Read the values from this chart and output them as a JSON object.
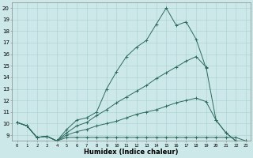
{
  "title": "",
  "xlabel": "Humidex (Indice chaleur)",
  "bg_color": "#cce8e8",
  "line_color": "#2d6b5e",
  "grid_color": "#aacfcf",
  "xlim": [
    -0.5,
    23.5
  ],
  "ylim": [
    8.5,
    20.5
  ],
  "xticks": [
    0,
    1,
    2,
    3,
    4,
    5,
    6,
    7,
    8,
    9,
    10,
    11,
    12,
    13,
    14,
    15,
    16,
    17,
    18,
    19,
    20,
    21,
    22,
    23
  ],
  "yticks": [
    9,
    10,
    11,
    12,
    13,
    14,
    15,
    16,
    17,
    18,
    19,
    20
  ],
  "lines": [
    {
      "x": [
        0,
        1,
        2,
        3,
        4,
        5,
        6,
        7,
        8,
        9,
        10,
        11,
        12,
        13,
        14,
        15,
        16,
        17,
        18,
        19
      ],
      "y": [
        10.1,
        9.8,
        8.8,
        8.9,
        8.5,
        9.5,
        10.3,
        10.5,
        11.0,
        13.0,
        14.5,
        15.8,
        16.6,
        17.2,
        18.6,
        20.0,
        18.5,
        18.8,
        17.3,
        14.8
      ]
    },
    {
      "x": [
        0,
        1,
        2,
        3,
        4,
        5,
        6,
        7,
        8,
        9,
        10,
        11,
        12,
        13,
        14,
        15,
        16,
        17,
        18,
        19,
        20,
        21,
        22
      ],
      "y": [
        10.1,
        9.8,
        8.8,
        8.9,
        8.5,
        9.2,
        9.8,
        10.1,
        10.7,
        11.2,
        11.8,
        12.3,
        12.8,
        13.3,
        13.9,
        14.4,
        14.9,
        15.4,
        15.8,
        14.9,
        10.3,
        9.2,
        8.5
      ]
    },
    {
      "x": [
        0,
        1,
        2,
        3,
        4,
        5,
        6,
        7,
        8,
        9,
        10,
        11,
        12,
        13,
        14,
        15,
        16,
        17,
        18,
        19,
        20,
        21,
        22,
        23
      ],
      "y": [
        10.1,
        9.8,
        8.8,
        8.9,
        8.5,
        9.0,
        9.3,
        9.5,
        9.8,
        10.0,
        10.2,
        10.5,
        10.8,
        11.0,
        11.2,
        11.5,
        11.8,
        12.0,
        12.2,
        11.9,
        10.3,
        9.2,
        8.5,
        8.5
      ]
    },
    {
      "x": [
        0,
        1,
        2,
        3,
        4,
        5,
        6,
        7,
        8,
        9,
        10,
        11,
        12,
        13,
        14,
        15,
        16,
        17,
        18,
        19,
        20,
        21,
        22,
        23
      ],
      "y": [
        10.1,
        9.8,
        8.8,
        8.9,
        8.5,
        8.8,
        8.8,
        8.8,
        8.8,
        8.8,
        8.8,
        8.8,
        8.8,
        8.8,
        8.8,
        8.8,
        8.8,
        8.8,
        8.8,
        8.8,
        8.8,
        8.8,
        8.8,
        8.5
      ]
    }
  ],
  "xlabel_fontsize": 6,
  "xtick_fontsize": 4,
  "ytick_fontsize": 5
}
